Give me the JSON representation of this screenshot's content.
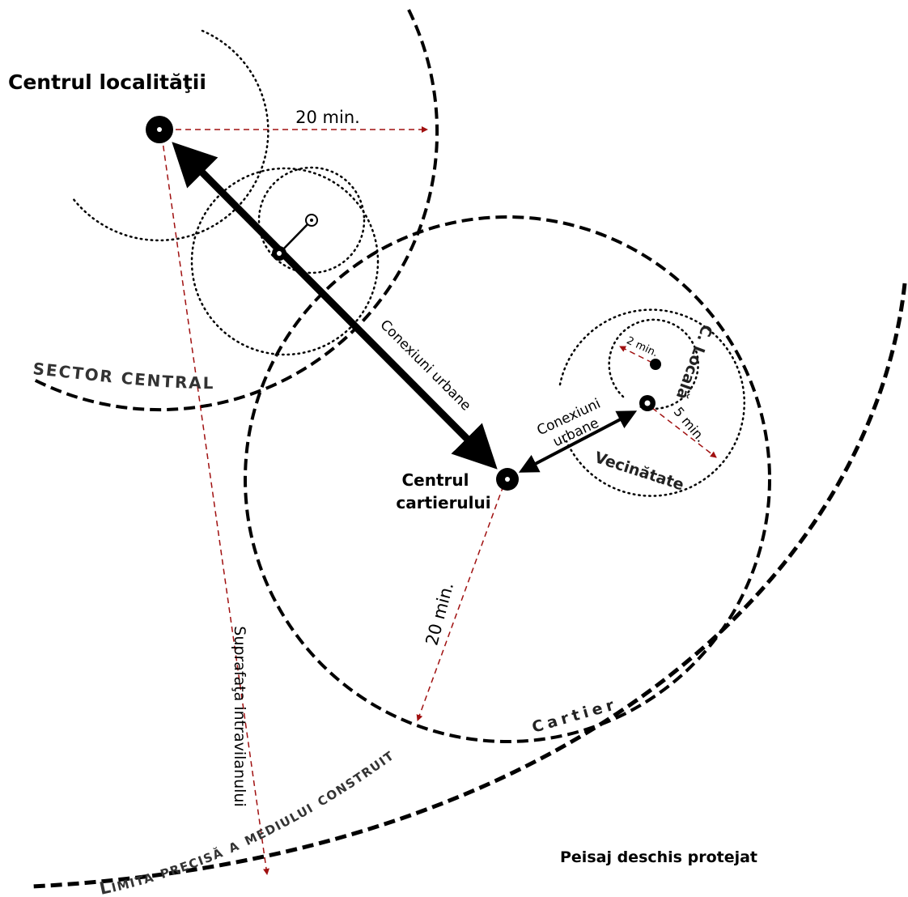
{
  "labels": {
    "centrul_localitatii": "Centrul localităţii",
    "min20_top": "20 min.",
    "conexiuni_urbane_big": "Conexiuni urbane",
    "sector_central": "SECTOR CENTRAL",
    "centrul_cartierului": [
      "Centrul",
      "cartierului"
    ],
    "conexiuni_urbane_small": [
      "Conexiuni",
      "urbane"
    ],
    "min2": "2 min.",
    "min5": "5 min.",
    "c_locala": "C. Locală",
    "vecinatate": "Vecinătate",
    "min20_cartier": "20 min.",
    "cartier": "Cartier",
    "suprafata": "Suprafaţa intravilanului",
    "limita": "Limita precisă a mediului construit",
    "peisaj": "Peisaj deschis protejat"
  }
}
